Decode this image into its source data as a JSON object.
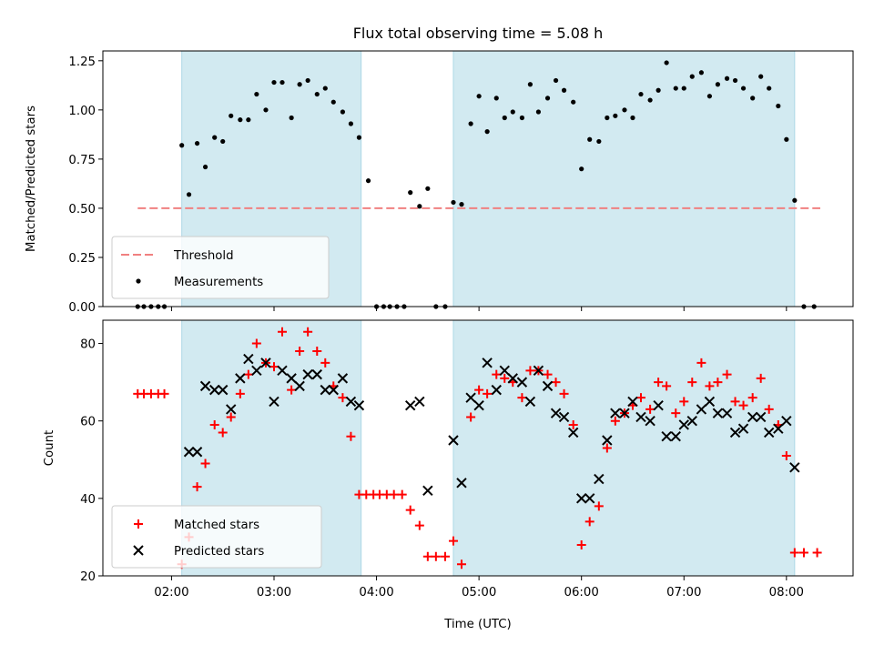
{
  "title": "Flux total observing time = 5.08 h",
  "chart_data": [
    {
      "type": "scatter",
      "panel": "top",
      "ylabel": "Matched/Predicted stars",
      "ylim": [
        0,
        1.3
      ],
      "yticks": [
        0.0,
        0.25,
        0.5,
        0.75,
        1.0,
        1.25
      ],
      "ytick_labels": [
        "0.00",
        "0.25",
        "0.50",
        "0.75",
        "1.00",
        "1.25"
      ],
      "xlim_hours": [
        1.33,
        8.65
      ],
      "threshold": {
        "name": "Threshold",
        "value": 0.5,
        "x_range": [
          1.67,
          8.33
        ],
        "color": "#f08080"
      },
      "shaded_intervals": [
        [
          2.1,
          3.85
        ],
        [
          4.75,
          8.08
        ]
      ],
      "shade_color": "#add8e6",
      "series": [
        {
          "name": "Measurements",
          "color": "#000000",
          "points": [
            [
              1.67,
              0
            ],
            [
              1.73,
              0
            ],
            [
              1.8,
              0
            ],
            [
              1.87,
              0
            ],
            [
              1.93,
              0
            ],
            [
              2.1,
              0.82
            ],
            [
              2.17,
              0.57
            ],
            [
              2.25,
              0.83
            ],
            [
              2.33,
              0.71
            ],
            [
              2.42,
              0.86
            ],
            [
              2.5,
              0.84
            ],
            [
              2.58,
              0.97
            ],
            [
              2.67,
              0.95
            ],
            [
              2.75,
              0.95
            ],
            [
              2.83,
              1.08
            ],
            [
              2.92,
              1.0
            ],
            [
              3.0,
              1.14
            ],
            [
              3.08,
              1.14
            ],
            [
              3.17,
              0.96
            ],
            [
              3.25,
              1.13
            ],
            [
              3.33,
              1.15
            ],
            [
              3.42,
              1.08
            ],
            [
              3.5,
              1.11
            ],
            [
              3.58,
              1.04
            ],
            [
              3.67,
              0.99
            ],
            [
              3.75,
              0.93
            ],
            [
              3.83,
              0.86
            ],
            [
              3.92,
              0.64
            ],
            [
              4.0,
              0
            ],
            [
              4.07,
              0
            ],
            [
              4.13,
              0
            ],
            [
              4.2,
              0
            ],
            [
              4.27,
              0
            ],
            [
              4.33,
              0.58
            ],
            [
              4.42,
              0.51
            ],
            [
              4.5,
              0.6
            ],
            [
              4.58,
              0
            ],
            [
              4.67,
              0
            ],
            [
              4.75,
              0.53
            ],
            [
              4.83,
              0.52
            ],
            [
              4.92,
              0.93
            ],
            [
              5.0,
              1.07
            ],
            [
              5.08,
              0.89
            ],
            [
              5.17,
              1.06
            ],
            [
              5.25,
              0.96
            ],
            [
              5.33,
              0.99
            ],
            [
              5.42,
              0.96
            ],
            [
              5.5,
              1.13
            ],
            [
              5.58,
              0.99
            ],
            [
              5.67,
              1.06
            ],
            [
              5.75,
              1.15
            ],
            [
              5.83,
              1.1
            ],
            [
              5.92,
              1.04
            ],
            [
              6.0,
              0.7
            ],
            [
              6.08,
              0.85
            ],
            [
              6.17,
              0.84
            ],
            [
              6.25,
              0.96
            ],
            [
              6.33,
              0.97
            ],
            [
              6.42,
              1.0
            ],
            [
              6.5,
              0.96
            ],
            [
              6.58,
              1.08
            ],
            [
              6.67,
              1.05
            ],
            [
              6.75,
              1.1
            ],
            [
              6.83,
              1.24
            ],
            [
              6.92,
              1.11
            ],
            [
              7.0,
              1.11
            ],
            [
              7.08,
              1.17
            ],
            [
              7.17,
              1.19
            ],
            [
              7.25,
              1.07
            ],
            [
              7.33,
              1.13
            ],
            [
              7.42,
              1.16
            ],
            [
              7.5,
              1.15
            ],
            [
              7.58,
              1.11
            ],
            [
              7.67,
              1.06
            ],
            [
              7.75,
              1.17
            ],
            [
              7.83,
              1.11
            ],
            [
              7.92,
              1.02
            ],
            [
              8.0,
              0.85
            ],
            [
              8.08,
              0.54
            ],
            [
              8.17,
              0
            ],
            [
              8.27,
              0
            ]
          ]
        }
      ],
      "legend": {
        "placement": "lower-left",
        "entries": [
          "Threshold",
          "Measurements"
        ]
      }
    },
    {
      "type": "scatter",
      "panel": "bottom",
      "xlabel": "Time (UTC)",
      "ylabel": "Count",
      "ylim": [
        20,
        86
      ],
      "yticks": [
        20,
        40,
        60,
        80
      ],
      "ytick_labels": [
        "20",
        "40",
        "60",
        "80"
      ],
      "xlim_hours": [
        1.33,
        8.65
      ],
      "xticks_hours": [
        2,
        3,
        4,
        5,
        6,
        7,
        8
      ],
      "xtick_labels": [
        "02:00",
        "03:00",
        "04:00",
        "05:00",
        "06:00",
        "07:00",
        "08:00"
      ],
      "shaded_intervals": [
        [
          2.1,
          3.85
        ],
        [
          4.75,
          8.08
        ]
      ],
      "shade_color": "#add8e6",
      "series": [
        {
          "name": "Matched stars",
          "marker": "plus",
          "color": "#ff0000",
          "points": [
            [
              1.67,
              67
            ],
            [
              1.73,
              67
            ],
            [
              1.8,
              67
            ],
            [
              1.87,
              67
            ],
            [
              1.93,
              67
            ],
            [
              2.1,
              23
            ],
            [
              2.17,
              30
            ],
            [
              2.25,
              43
            ],
            [
              2.33,
              49
            ],
            [
              2.42,
              59
            ],
            [
              2.5,
              57
            ],
            [
              2.58,
              61
            ],
            [
              2.67,
              67
            ],
            [
              2.75,
              72
            ],
            [
              2.83,
              80
            ],
            [
              2.92,
              75
            ],
            [
              3.0,
              74
            ],
            [
              3.08,
              83
            ],
            [
              3.17,
              68
            ],
            [
              3.25,
              78
            ],
            [
              3.33,
              83
            ],
            [
              3.42,
              78
            ],
            [
              3.5,
              75
            ],
            [
              3.58,
              69
            ],
            [
              3.67,
              66
            ],
            [
              3.75,
              56
            ],
            [
              3.83,
              41
            ],
            [
              3.9,
              41
            ],
            [
              3.97,
              41
            ],
            [
              4.03,
              41
            ],
            [
              4.1,
              41
            ],
            [
              4.17,
              41
            ],
            [
              4.25,
              41
            ],
            [
              4.33,
              37
            ],
            [
              4.42,
              33
            ],
            [
              4.5,
              25
            ],
            [
              4.58,
              25
            ],
            [
              4.67,
              25
            ],
            [
              4.75,
              29
            ],
            [
              4.83,
              23
            ],
            [
              4.92,
              61
            ],
            [
              5.0,
              68
            ],
            [
              5.08,
              67
            ],
            [
              5.17,
              72
            ],
            [
              5.25,
              71
            ],
            [
              5.33,
              70
            ],
            [
              5.42,
              66
            ],
            [
              5.5,
              73
            ],
            [
              5.58,
              73
            ],
            [
              5.67,
              72
            ],
            [
              5.75,
              70
            ],
            [
              5.83,
              67
            ],
            [
              5.92,
              59
            ],
            [
              6.0,
              28
            ],
            [
              6.08,
              34
            ],
            [
              6.17,
              38
            ],
            [
              6.25,
              53
            ],
            [
              6.33,
              60
            ],
            [
              6.42,
              62
            ],
            [
              6.5,
              64
            ],
            [
              6.58,
              66
            ],
            [
              6.67,
              63
            ],
            [
              6.75,
              70
            ],
            [
              6.83,
              69
            ],
            [
              6.92,
              62
            ],
            [
              7.0,
              65
            ],
            [
              7.08,
              70
            ],
            [
              7.17,
              75
            ],
            [
              7.25,
              69
            ],
            [
              7.33,
              70
            ],
            [
              7.42,
              72
            ],
            [
              7.5,
              65
            ],
            [
              7.58,
              64
            ],
            [
              7.67,
              66
            ],
            [
              7.75,
              71
            ],
            [
              7.83,
              63
            ],
            [
              7.92,
              59
            ],
            [
              8.0,
              51
            ],
            [
              8.08,
              26
            ],
            [
              8.17,
              26
            ],
            [
              8.3,
              26
            ]
          ]
        },
        {
          "name": "Predicted stars",
          "marker": "x",
          "color": "#000000",
          "points": [
            [
              2.17,
              52
            ],
            [
              2.25,
              52
            ],
            [
              2.33,
              69
            ],
            [
              2.42,
              68
            ],
            [
              2.5,
              68
            ],
            [
              2.58,
              63
            ],
            [
              2.67,
              71
            ],
            [
              2.75,
              76
            ],
            [
              2.83,
              73
            ],
            [
              2.92,
              75
            ],
            [
              3.0,
              65
            ],
            [
              3.08,
              73
            ],
            [
              3.17,
              71
            ],
            [
              3.25,
              69
            ],
            [
              3.33,
              72
            ],
            [
              3.42,
              72
            ],
            [
              3.5,
              68
            ],
            [
              3.58,
              68
            ],
            [
              3.67,
              71
            ],
            [
              3.75,
              65
            ],
            [
              3.83,
              64
            ],
            [
              4.33,
              64
            ],
            [
              4.42,
              65
            ],
            [
              4.5,
              42
            ],
            [
              4.75,
              55
            ],
            [
              4.83,
              44
            ],
            [
              4.92,
              66
            ],
            [
              5.0,
              64
            ],
            [
              5.08,
              75
            ],
            [
              5.17,
              68
            ],
            [
              5.25,
              73
            ],
            [
              5.33,
              71
            ],
            [
              5.42,
              70
            ],
            [
              5.5,
              65
            ],
            [
              5.58,
              73
            ],
            [
              5.67,
              69
            ],
            [
              5.75,
              62
            ],
            [
              5.83,
              61
            ],
            [
              5.92,
              57
            ],
            [
              6.0,
              40
            ],
            [
              6.08,
              40
            ],
            [
              6.17,
              45
            ],
            [
              6.25,
              55
            ],
            [
              6.33,
              62
            ],
            [
              6.42,
              62
            ],
            [
              6.5,
              65
            ],
            [
              6.58,
              61
            ],
            [
              6.67,
              60
            ],
            [
              6.75,
              64
            ],
            [
              6.83,
              56
            ],
            [
              6.92,
              56
            ],
            [
              7.0,
              59
            ],
            [
              7.08,
              60
            ],
            [
              7.17,
              63
            ],
            [
              7.25,
              65
            ],
            [
              7.33,
              62
            ],
            [
              7.42,
              62
            ],
            [
              7.5,
              57
            ],
            [
              7.58,
              58
            ],
            [
              7.67,
              61
            ],
            [
              7.75,
              61
            ],
            [
              7.83,
              57
            ],
            [
              7.92,
              58
            ],
            [
              8.0,
              60
            ],
            [
              8.08,
              48
            ]
          ]
        }
      ],
      "legend": {
        "placement": "lower-left",
        "entries": [
          "Matched stars",
          "Predicted stars"
        ]
      }
    }
  ]
}
